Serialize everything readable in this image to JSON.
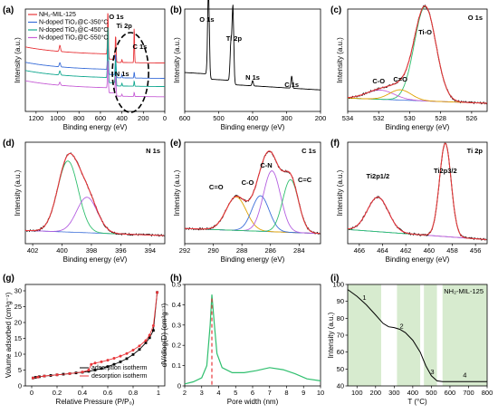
{
  "colors": {
    "black": "#000000",
    "red": "#e8373b",
    "blue": "#3b6fd9",
    "teal": "#13a890",
    "magenta": "#c760d6",
    "green": "#2fbf6e",
    "orange": "#e0a200",
    "purple": "#b45fe0",
    "shade": "#d7ebcf",
    "dashred": "#e8373b"
  },
  "chart_data": [
    {
      "id": "a",
      "type": "line",
      "panel_label": "(a)",
      "xlabel": "Binding energy (eV)",
      "ylabel": "Intensity (a.u.)",
      "xlim": [
        1300,
        0
      ],
      "xticks": [
        1200,
        1000,
        800,
        600,
        400,
        200,
        0
      ],
      "legend": [
        "NH₂-MIL-125",
        "N-doped TiO₂@C-350°C",
        "N-doped TiO₂@C-450°C",
        "N-doped TiO₂@C-550°C"
      ],
      "annotations": [
        "O 1s",
        "Ti 2p",
        "C 1s",
        "N 1s"
      ],
      "series": [
        {
          "name": "NH₂-MIL-125",
          "offset": 0.55,
          "peaks": [
            [
              978,
              0.06,
              6
            ],
            [
              530,
              0.45,
              4
            ],
            [
              458,
              0.25,
              4
            ],
            [
              285,
              0.35,
              3
            ],
            [
              400,
              0.03,
              3
            ]
          ]
        },
        {
          "name": "N-doped TiO₂@C-350°C",
          "offset": 0.4,
          "peaks": [
            [
              978,
              0.04,
              6
            ],
            [
              530,
              0.33,
              4
            ],
            [
              458,
              0.22,
              4
            ],
            [
              285,
              0.06,
              3
            ],
            [
              400,
              0.03,
              3
            ]
          ]
        },
        {
          "name": "N-doped TiO₂@C-450°C",
          "offset": 0.32,
          "peaks": [
            [
              978,
              0.04,
              6
            ],
            [
              530,
              0.55,
              4
            ],
            [
              458,
              0.25,
              4
            ],
            [
              285,
              0.05,
              3
            ],
            [
              400,
              0.03,
              3
            ]
          ]
        },
        {
          "name": "N-doped TiO₂@C-550°C",
          "offset": 0.22,
          "peaks": [
            [
              978,
              0.03,
              6
            ],
            [
              530,
              0.3,
              4
            ],
            [
              458,
              0.2,
              4
            ],
            [
              285,
              0.04,
              3
            ],
            [
              400,
              0.02,
              3
            ]
          ]
        }
      ]
    },
    {
      "id": "b",
      "type": "line",
      "panel_label": "(b)",
      "xlabel": "Binding energy (eV)",
      "ylabel": "Intensity (a.u.)",
      "xlim": [
        600,
        200
      ],
      "xticks": [
        600,
        500,
        400,
        300,
        200
      ],
      "annotations": [
        "O 1s",
        "Ti 2p",
        "N 1s",
        "C 1s"
      ],
      "peaks": [
        [
          530,
          0.85,
          2.5
        ],
        [
          458,
          0.72,
          2.5
        ],
        [
          464,
          0.35,
          2.5
        ],
        [
          400,
          0.05,
          2
        ],
        [
          285,
          0.12,
          2
        ]
      ]
    },
    {
      "id": "c",
      "type": "line",
      "panel_label": "(c)",
      "title": "O 1s",
      "xlabel": "Binding energy (eV)",
      "ylabel": "Intensity (a.u.)",
      "xlim": [
        534,
        525
      ],
      "xticks": [
        534,
        532,
        530,
        528,
        526
      ],
      "annotations": [
        "Ti-O",
        "C-O",
        "C=O"
      ],
      "components": [
        {
          "name": "Ti-O",
          "center": 529.0,
          "height": 0.92,
          "width": 0.7
        },
        {
          "name": "C-O",
          "center": 531.9,
          "height": 0.09,
          "width": 0.9
        },
        {
          "name": "C=O",
          "center": 530.6,
          "height": 0.1,
          "width": 0.7
        }
      ]
    },
    {
      "id": "d",
      "type": "line",
      "panel_label": "(d)",
      "title": "N 1s",
      "xlabel": "Binding energy (eV)",
      "ylabel": "Intensity (a.u.)",
      "xlim": [
        402.5,
        393
      ],
      "xticks": [
        402,
        400,
        398,
        396,
        394
      ],
      "components": [
        {
          "name": "peak-1",
          "center": 399.6,
          "height": 0.7,
          "width": 0.7
        },
        {
          "name": "peak-2",
          "center": 398.3,
          "height": 0.35,
          "width": 0.7
        }
      ]
    },
    {
      "id": "e",
      "type": "line",
      "panel_label": "(e)",
      "title": "C 1s",
      "xlabel": "Binding energy (eV)",
      "ylabel": "Intensity (a.u.)",
      "xlim": [
        292,
        282.5
      ],
      "xticks": [
        292,
        290,
        288,
        286,
        284
      ],
      "annotations": [
        "C=O",
        "C-O",
        "C-N",
        "C=C"
      ],
      "components": [
        {
          "name": "C=O",
          "center": 288.4,
          "height": 0.33,
          "width": 0.7
        },
        {
          "name": "C-O",
          "center": 286.7,
          "height": 0.35,
          "width": 0.6
        },
        {
          "name": "C-N",
          "center": 285.9,
          "height": 0.6,
          "width": 0.6
        },
        {
          "name": "C=C",
          "center": 284.6,
          "height": 0.52,
          "width": 0.55
        }
      ]
    },
    {
      "id": "f",
      "type": "line",
      "panel_label": "(f)",
      "title": "Ti 2p",
      "xlabel": "Binding energy (eV)",
      "ylabel": "Intensity (a.u.)",
      "xlim": [
        467,
        455
      ],
      "xticks": [
        466,
        464,
        462,
        460,
        458,
        456
      ],
      "annotations": [
        "Ti2p1/2",
        "Ti2p3/2"
      ],
      "components": [
        {
          "name": "Ti2p1/2",
          "center": 464.4,
          "height": 0.34,
          "width": 0.9
        },
        {
          "name": "Ti2p3/2",
          "center": 458.6,
          "height": 0.92,
          "width": 0.5
        }
      ]
    },
    {
      "id": "g",
      "type": "line",
      "panel_label": "(g)",
      "xlabel": "Relative Pressure (P/P₀)",
      "ylabel": "Volume adsorbed (cm³g⁻¹)",
      "xlim": [
        -0.05,
        1.05
      ],
      "ylim": [
        0,
        32
      ],
      "xticks": [
        0.0,
        0.2,
        0.4,
        0.6,
        0.8,
        1.0
      ],
      "yticks": [
        0,
        5,
        10,
        15,
        20,
        25,
        30
      ],
      "legend": [
        "adsorption isotherm",
        "desorption isotherm"
      ],
      "series": [
        {
          "name": "adsorption isotherm",
          "x": [
            0.01,
            0.03,
            0.06,
            0.1,
            0.15,
            0.2,
            0.25,
            0.3,
            0.35,
            0.4,
            0.45,
            0.5,
            0.55,
            0.6,
            0.65,
            0.7,
            0.75,
            0.8,
            0.85,
            0.9,
            0.93,
            0.96,
            0.99
          ],
          "y": [
            2.5,
            2.7,
            2.9,
            3.1,
            3.3,
            3.5,
            3.7,
            3.9,
            4.1,
            4.3,
            4.6,
            5.0,
            5.5,
            6.1,
            6.8,
            7.6,
            8.6,
            9.9,
            11.5,
            13.6,
            15.2,
            17.5,
            29.5
          ]
        },
        {
          "name": "desorption isotherm",
          "x": [
            0.99,
            0.96,
            0.93,
            0.9,
            0.85,
            0.8,
            0.75,
            0.7,
            0.65,
            0.6,
            0.55,
            0.5,
            0.47,
            0.45,
            0.4,
            0.3,
            0.2,
            0.1,
            0.05,
            0.01
          ],
          "y": [
            29.5,
            19.0,
            16.0,
            14.3,
            12.6,
            11.3,
            10.2,
            9.4,
            8.7,
            8.1,
            7.6,
            7.2,
            6.8,
            5.0,
            4.4,
            3.9,
            3.5,
            3.1,
            2.8,
            2.5
          ]
        }
      ]
    },
    {
      "id": "h",
      "type": "line",
      "panel_label": "(h)",
      "xlabel": "Pore width (nm)",
      "ylabel": "dV/dlog(D) (cm³g⁻¹)",
      "xlim": [
        2,
        10
      ],
      "ylim": [
        0,
        0.5
      ],
      "xticks": [
        2,
        3,
        4,
        5,
        6,
        7,
        8,
        9,
        10
      ],
      "yticks": [
        0.0,
        0.1,
        0.2,
        0.3,
        0.4,
        0.5
      ],
      "dashed_line_x": 3.6,
      "series": [
        {
          "name": "pore-size",
          "x": [
            2.0,
            2.5,
            3.0,
            3.3,
            3.5,
            3.6,
            3.75,
            3.9,
            4.2,
            4.8,
            5.5,
            6.2,
            7.0,
            7.8,
            8.5,
            9.2,
            10.0
          ],
          "y": [
            0.01,
            0.02,
            0.04,
            0.1,
            0.3,
            0.45,
            0.3,
            0.16,
            0.09,
            0.065,
            0.065,
            0.075,
            0.09,
            0.08,
            0.06,
            0.035,
            0.025
          ]
        }
      ]
    },
    {
      "id": "i",
      "type": "line",
      "panel_label": "(i)",
      "title": "NH₂-MIL-125",
      "xlabel": "T (°C)",
      "ylabel": "Intensity (a.u.)",
      "xlim": [
        50,
        800
      ],
      "ylim": [
        40,
        100
      ],
      "xticks": [
        100,
        200,
        300,
        400,
        500,
        600,
        700,
        800
      ],
      "yticks": [
        40,
        50,
        60,
        70,
        80,
        90,
        100
      ],
      "shaded_ranges": [
        [
          50,
          230
        ],
        [
          315,
          440
        ],
        [
          460,
          530
        ],
        [
          560,
          800
        ]
      ],
      "stage_labels": [
        "1",
        "2",
        "3",
        "4"
      ],
      "series": [
        {
          "name": "mass",
          "x": [
            50,
            100,
            150,
            200,
            240,
            270,
            300,
            330,
            360,
            400,
            440,
            470,
            500,
            530,
            560,
            600,
            700,
            800
          ],
          "y": [
            97,
            93,
            88,
            82,
            77,
            75,
            74.5,
            73.5,
            71.5,
            67,
            60,
            52,
            46,
            43,
            42.5,
            42.5,
            42.5,
            42.5
          ]
        }
      ]
    }
  ]
}
